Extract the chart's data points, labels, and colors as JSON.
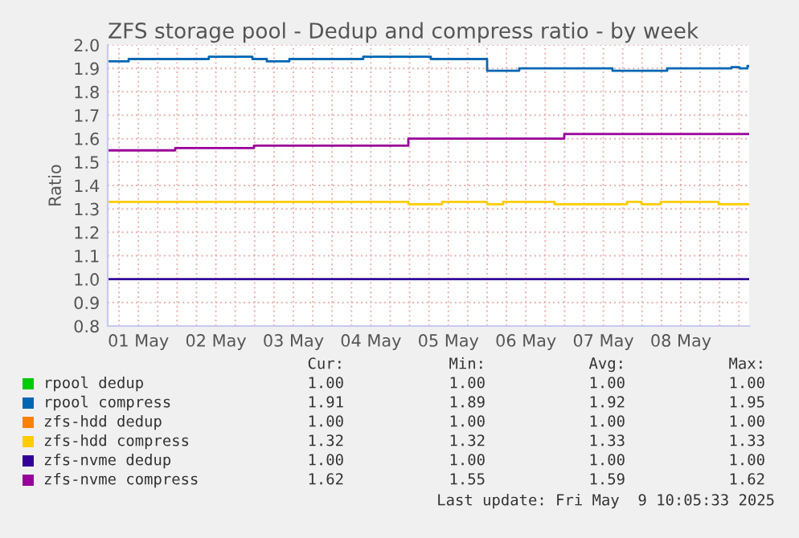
{
  "chart_data": {
    "type": "step",
    "title": "ZFS storage pool - Dedup and compress ratio - by week",
    "ylabel": "Ratio",
    "xlim": [
      "2025-05-01T02:30",
      "2025-05-09T09:10"
    ],
    "xticks": [
      {
        "value": "2025-05-01T06:00",
        "label": null
      },
      {
        "value": "2025-05-01T12:00",
        "label": "01 May"
      },
      {
        "value": "2025-05-01T18:00",
        "label": null
      },
      {
        "value": "2025-05-02T00:00",
        "label": null
      },
      {
        "value": "2025-05-02T06:00",
        "label": null
      },
      {
        "value": "2025-05-02T12:00",
        "label": "02 May"
      },
      {
        "value": "2025-05-02T18:00",
        "label": null
      },
      {
        "value": "2025-05-03T00:00",
        "label": null
      },
      {
        "value": "2025-05-03T06:00",
        "label": null
      },
      {
        "value": "2025-05-03T12:00",
        "label": "03 May"
      },
      {
        "value": "2025-05-03T18:00",
        "label": null
      },
      {
        "value": "2025-05-04T00:00",
        "label": null
      },
      {
        "value": "2025-05-04T06:00",
        "label": null
      },
      {
        "value": "2025-05-04T12:00",
        "label": "04 May"
      },
      {
        "value": "2025-05-04T18:00",
        "label": null
      },
      {
        "value": "2025-05-05T00:00",
        "label": null
      },
      {
        "value": "2025-05-05T06:00",
        "label": null
      },
      {
        "value": "2025-05-05T12:00",
        "label": "05 May"
      },
      {
        "value": "2025-05-05T18:00",
        "label": null
      },
      {
        "value": "2025-05-06T00:00",
        "label": null
      },
      {
        "value": "2025-05-06T06:00",
        "label": null
      },
      {
        "value": "2025-05-06T12:00",
        "label": "06 May"
      },
      {
        "value": "2025-05-06T18:00",
        "label": null
      },
      {
        "value": "2025-05-07T00:00",
        "label": null
      },
      {
        "value": "2025-05-07T06:00",
        "label": null
      },
      {
        "value": "2025-05-07T12:00",
        "label": "07 May"
      },
      {
        "value": "2025-05-07T18:00",
        "label": null
      },
      {
        "value": "2025-05-08T00:00",
        "label": null
      },
      {
        "value": "2025-05-08T06:00",
        "label": null
      },
      {
        "value": "2025-05-08T12:00",
        "label": "08 May"
      },
      {
        "value": "2025-05-08T18:00",
        "label": null
      },
      {
        "value": "2025-05-09T00:00",
        "label": null
      },
      {
        "value": "2025-05-09T06:00",
        "label": null
      }
    ],
    "ylim": [
      0.8,
      2.0
    ],
    "yticks": [
      0.8,
      0.9,
      {
        "value": 1,
        "label": "1.0"
      },
      1.1,
      1.2,
      1.3,
      1.4,
      1.5,
      1.6,
      1.7,
      1.8,
      1.9,
      {
        "value": 2,
        "label": "2.0"
      }
    ],
    "grid": true,
    "legend": "bottom",
    "series": [
      {
        "name": "rpool dedup",
        "color": "#00cc00"
      },
      {
        "name": "rpool compress",
        "color": "#0066b3",
        "x": [
          "2025-05-01T02:30",
          "2025-05-01T09:00",
          "2025-05-02T09:50",
          "2025-05-02T23:18",
          "2025-05-03T03:47",
          "2025-05-03T10:45",
          "2025-05-04T09:39",
          "2025-05-05T06:34",
          "2025-05-06T00:00",
          "2025-05-06T09:57",
          "2025-05-07T14:50",
          "2025-05-08T07:47",
          "2025-05-09T03:41",
          "2025-05-09T06:10",
          "2025-05-09T08:38",
          "2025-05-09T09:10"
        ],
        "values": [
          1.93,
          1.94,
          1.95,
          1.94,
          1.93,
          1.94,
          1.95,
          1.94,
          1.89,
          1.9,
          1.89,
          1.9,
          1.905,
          1.9,
          1.91,
          1.91
        ]
      },
      {
        "name": "zfs-hdd dedup",
        "color": "#ff8000"
      },
      {
        "name": "zfs-hdd compress",
        "color": "#ffcc00",
        "x": [
          "2025-05-01T02:30",
          "2025-05-04T23:36",
          "2025-05-05T10:03",
          "2025-05-06T00:00",
          "2025-05-06T04:58",
          "2025-05-06T20:54",
          "2025-05-07T19:19",
          "2025-05-07T23:48",
          "2025-05-08T05:47",
          "2025-05-08T23:43",
          "2025-05-09T09:10"
        ],
        "values": [
          1.33,
          1.32,
          1.33,
          1.32,
          1.33,
          1.32,
          1.33,
          1.32,
          1.33,
          1.32,
          1.32
        ]
      },
      {
        "name": "zfs-nvme dedup",
        "color": "#330099",
        "x": [
          "2025-05-01T02:30",
          "2025-05-09T09:10"
        ],
        "values": [
          1.0,
          1.0
        ]
      },
      {
        "name": "zfs-nvme compress",
        "color": "#990099",
        "x": [
          "2025-05-01T02:30",
          "2025-05-01T23:24",
          "2025-05-02T23:48",
          "2025-05-04T23:36",
          "2025-05-06T23:54",
          "2025-05-09T09:10"
        ],
        "values": [
          1.55,
          1.56,
          1.57,
          1.6,
          1.62,
          1.62
        ]
      }
    ],
    "annotations": [
      "Cur:",
      "Min:",
      "Avg:",
      "Max:",
      "1.00",
      "1.00",
      "1.00",
      "1.00",
      "1.91",
      "1.89",
      "1.92",
      "1.95",
      "1.00",
      "1.00",
      "1.00",
      "1.00",
      "1.32",
      "1.32",
      "1.33",
      "1.33",
      "1.00",
      "1.00",
      "1.00",
      "1.00",
      "1.62",
      "1.55",
      "1.59",
      "1.62",
      "Last update: Fri May  9 10:05:33 2025"
    ]
  }
}
